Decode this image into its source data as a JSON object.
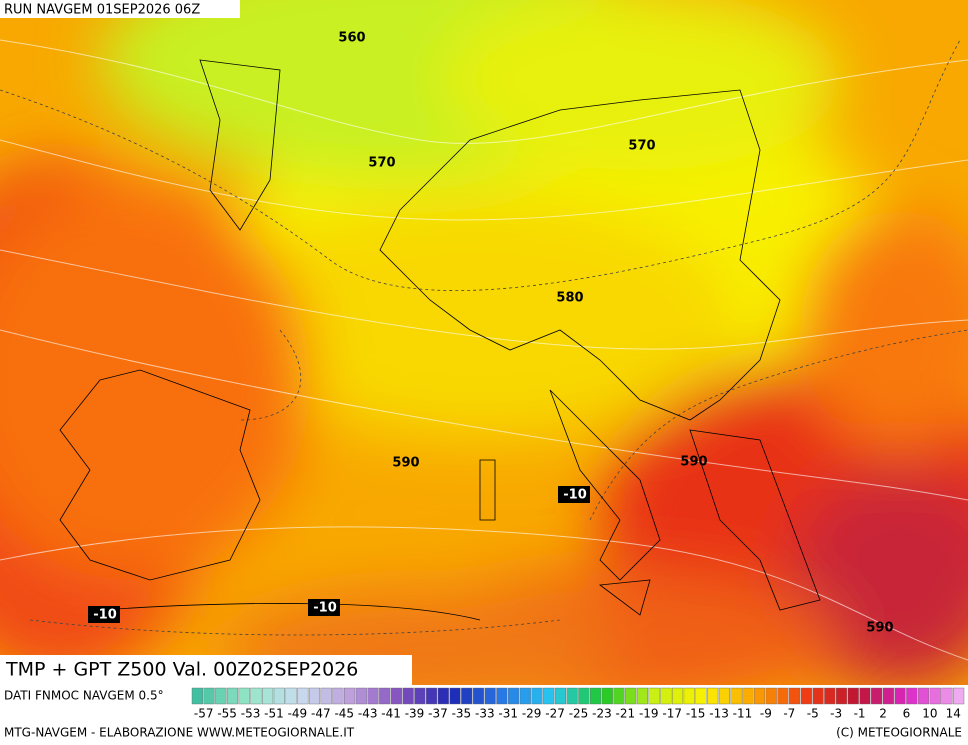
{
  "header": {
    "run": "RUN NAVGEM 01SEP2026 06Z",
    "title": "TMP + GPT Z500 Val. 00Z02SEP2026"
  },
  "contour_labels": {
    "geopotential": [
      "560",
      "570",
      "570",
      "580",
      "590",
      "590",
      "590"
    ],
    "temperature": [
      "-10",
      "-10",
      "-10"
    ]
  },
  "legend": {
    "source": "DATI FNMOC NAVGEM 0.5°",
    "labels": [
      "-57",
      "-55",
      "-53",
      "-51",
      "-49",
      "-47",
      "-45",
      "-43",
      "-41",
      "-39",
      "-37",
      "-35",
      "-33",
      "-31",
      "-29",
      "-27",
      "-25",
      "-23",
      "-21",
      "-19",
      "-17",
      "-15",
      "-13",
      "-11",
      "-9",
      "-7",
      "-5",
      "-3",
      "-1",
      "2",
      "6",
      "10",
      "14"
    ]
  },
  "footer": {
    "left": "MTG-NAVGEM - ELABORAZIONE WWW.METEOGIORNALE.IT",
    "right": "(C) METEOGIORNALE"
  }
}
